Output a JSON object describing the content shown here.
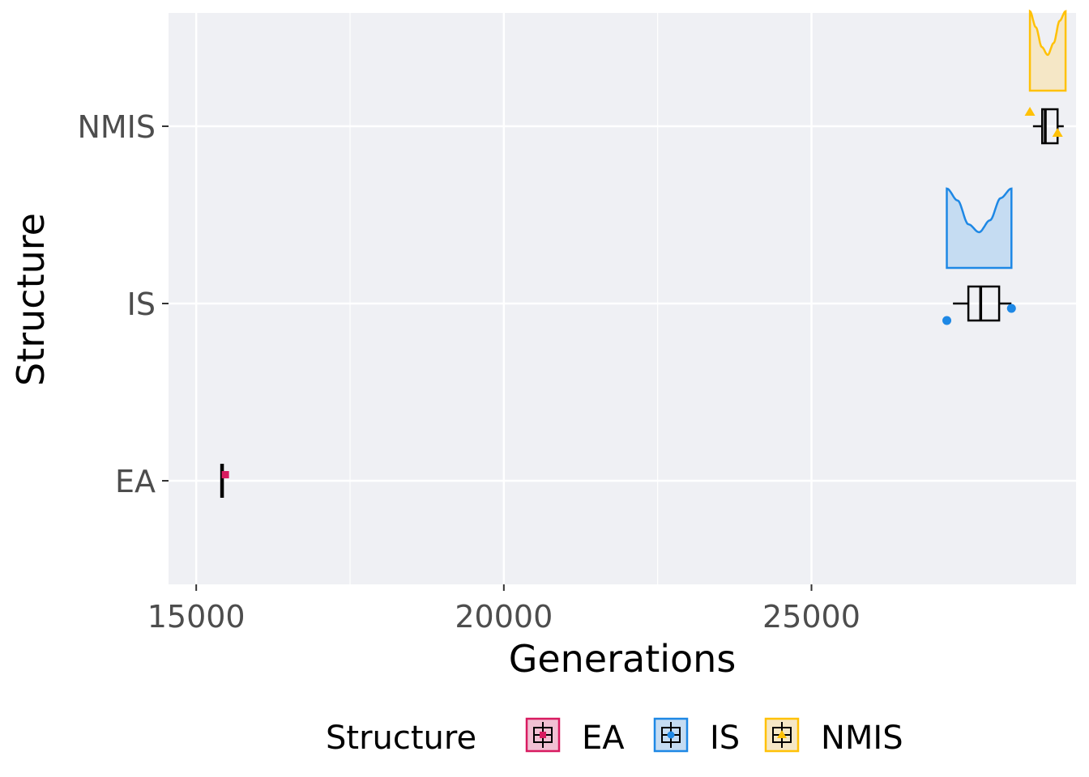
{
  "chart_data": {
    "type": "boxplot",
    "xlabel": "Generations",
    "ylabel": "Structure",
    "xlim": [
      14550,
      29300
    ],
    "x_ticks": [
      15000,
      20000,
      25000
    ],
    "x_tick_labels": [
      "15000",
      "20000",
      "25000"
    ],
    "categories": [
      "EA",
      "IS",
      "NMIS"
    ],
    "grid": true,
    "legend": {
      "title": "Structure",
      "position": "bottom",
      "entries": [
        "EA",
        "IS",
        "NMIS"
      ]
    },
    "series": [
      {
        "name": "EA",
        "color": "#d81b60",
        "fill": "#f1c0d3",
        "box": {
          "min": 15420,
          "q1": 15420,
          "median": 15420,
          "q3": 15420,
          "max": 15420
        },
        "outliers": [
          15480
        ],
        "density": null
      },
      {
        "name": "IS",
        "color": "#1e88e5",
        "fill": "#c5dcf2",
        "box": {
          "min": 27300,
          "q1": 27550,
          "median": 27750,
          "q3": 28050,
          "max": 28250
        },
        "outliers": [
          27200,
          28250
        ],
        "density": {
          "xmin": 27200,
          "xmax": 28250,
          "curve": [
            1.0,
            0.85,
            0.55,
            0.45,
            0.6,
            0.88,
            1.0
          ]
        }
      },
      {
        "name": "NMIS",
        "color": "#ffc107",
        "fill": "#f5e7c6",
        "box": {
          "min": 28600,
          "q1": 28750,
          "median": 28800,
          "q3": 29000,
          "max": 29100
        },
        "outliers": [
          28550,
          29000
        ],
        "density": {
          "xmin": 28550,
          "xmax": 29130,
          "curve": [
            1.0,
            0.8,
            0.55,
            0.45,
            0.6,
            0.88,
            1.0
          ]
        }
      }
    ]
  }
}
